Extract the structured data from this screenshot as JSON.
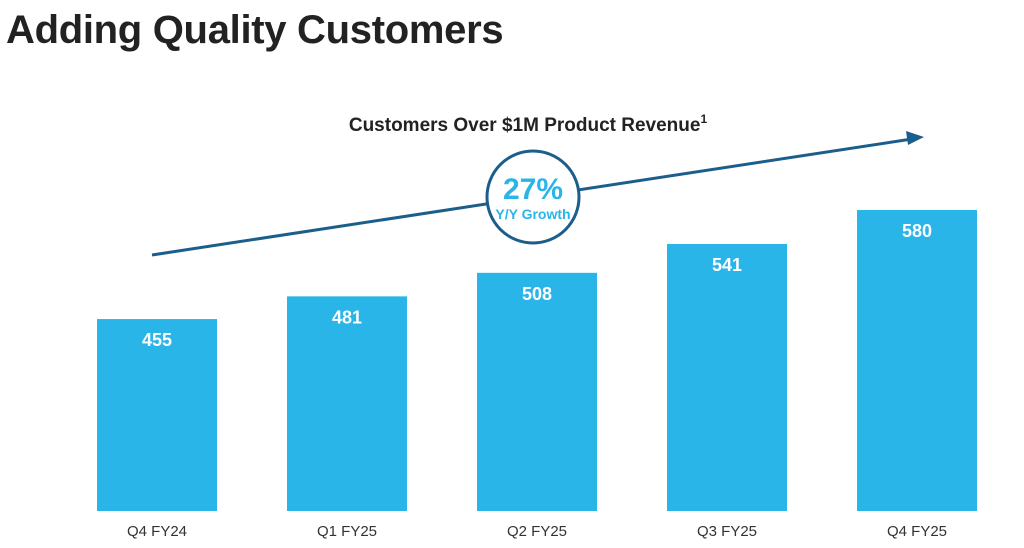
{
  "page": {
    "title": "Adding Quality Customers"
  },
  "colors": {
    "bar": "#29b5e8",
    "trend": "#1b5e8c",
    "title_text": "#222222",
    "accent_text": "#29b5e8"
  },
  "annotation": {
    "growth_value": "27%",
    "growth_label": "Y/Y Growth"
  },
  "chart_data": {
    "type": "bar",
    "title": "Customers Over $1M Product Revenue",
    "title_superscript": "1",
    "categories": [
      "Q4 FY24",
      "Q1 FY25",
      "Q2 FY25",
      "Q3 FY25",
      "Q4 FY25"
    ],
    "values": [
      455,
      481,
      508,
      541,
      580
    ],
    "data_labels": [
      "455",
      "481",
      "508",
      "541",
      "580"
    ],
    "xlabel": "",
    "ylabel": "",
    "ylim": [
      235,
      580
    ],
    "grid": false,
    "legend": "none",
    "annotations": [
      "27% Y/Y Growth",
      "upward trend arrow"
    ]
  }
}
